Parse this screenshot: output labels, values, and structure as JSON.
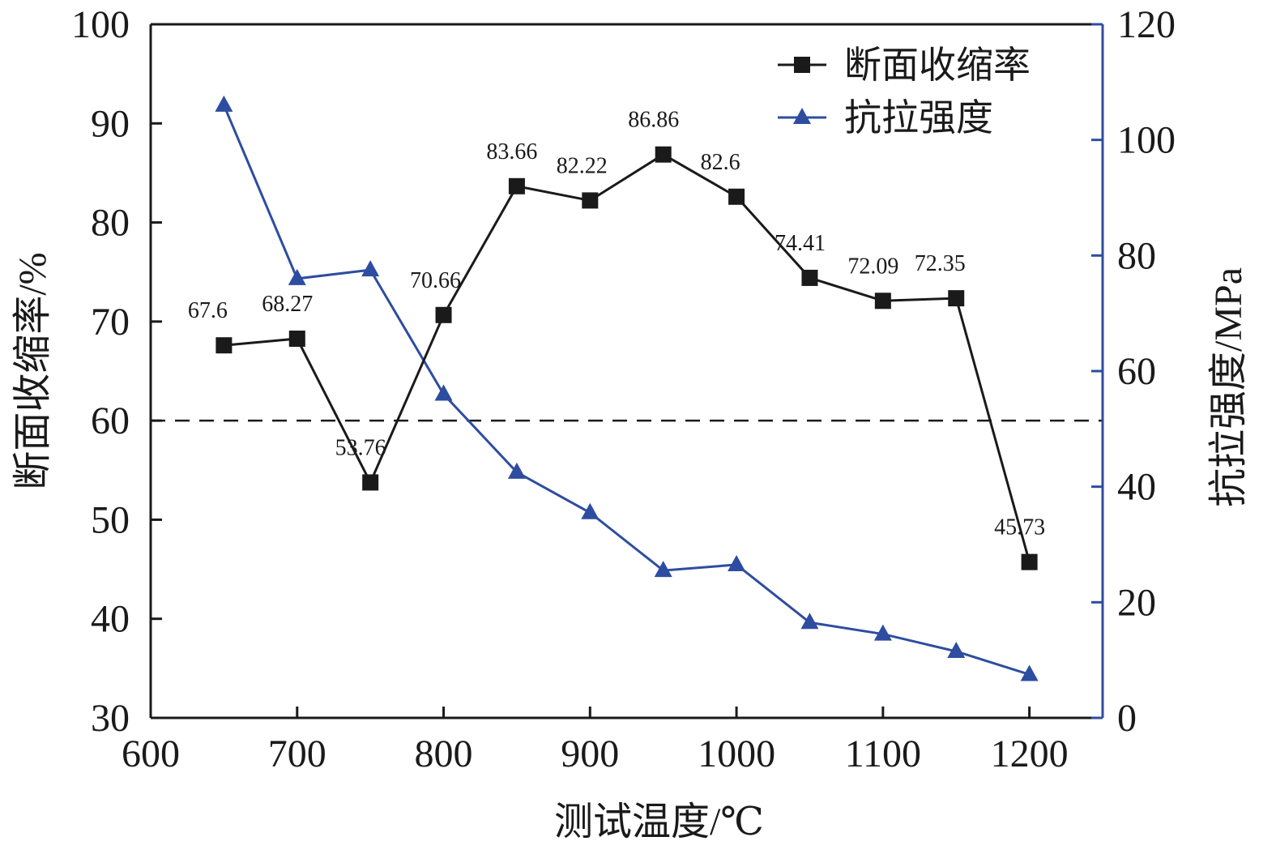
{
  "chart_data": {
    "type": "line",
    "xlabel": "测试温度/℃",
    "ylabel_left": "断面收缩率/%",
    "ylabel_right": "抗拉强度/MPa",
    "xlim": [
      600,
      1250
    ],
    "ylim_left": [
      30,
      100
    ],
    "ylim_right": [
      0,
      120
    ],
    "x_ticks": [
      600,
      700,
      800,
      900,
      1000,
      1100,
      1200
    ],
    "y_left_ticks": [
      30,
      40,
      50,
      60,
      70,
      80,
      90,
      100
    ],
    "y_right_ticks": [
      0,
      20,
      40,
      60,
      80,
      100,
      120
    ],
    "reference_line": {
      "axis": "left",
      "value": 60,
      "style": "dashed"
    },
    "legend_position": "top-right",
    "colors": {
      "reduction": "#1a1a1a",
      "tensile": "#2e4da0"
    },
    "series": [
      {
        "name": "断面收缩率",
        "axis": "left",
        "marker": "square",
        "x": [
          650,
          700,
          750,
          800,
          850,
          900,
          950,
          1000,
          1050,
          1100,
          1150,
          1200
        ],
        "values": [
          67.6,
          68.27,
          53.76,
          70.66,
          83.66,
          82.22,
          86.86,
          82.6,
          74.41,
          72.09,
          72.35,
          45.73
        ],
        "labels": [
          "67.6",
          "68.27",
          "53.76",
          "70.66",
          "83.66",
          "82.22",
          "86.86",
          "82.6",
          "74.41",
          "72.09",
          "72.35",
          "45.73"
        ]
      },
      {
        "name": "抗拉强度",
        "axis": "right",
        "marker": "triangle",
        "x": [
          650,
          700,
          750,
          800,
          850,
          900,
          950,
          1000,
          1050,
          1100,
          1150,
          1200
        ],
        "values": [
          106,
          76,
          77.5,
          56,
          42.5,
          35.5,
          25.5,
          26.5,
          16.5,
          14.5,
          11.5,
          7.5
        ]
      }
    ]
  }
}
